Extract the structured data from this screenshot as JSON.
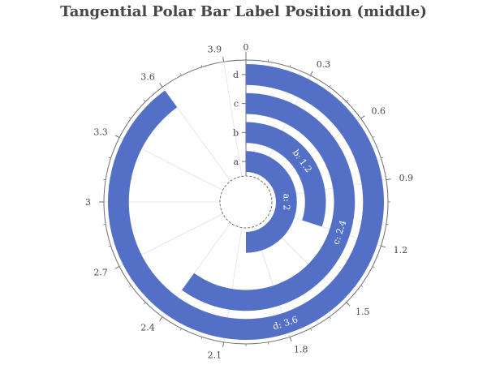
{
  "chart_data": {
    "type": "bar",
    "title": "Tangential Polar Bar Label Position (middle)",
    "coordinate_system": "polar",
    "orientation": "tangential",
    "label_position": "middle",
    "categories": [
      "a",
      "b",
      "c",
      "d"
    ],
    "values": [
      2,
      1.2,
      2.4,
      3.6
    ],
    "data_labels": [
      "a: 2",
      "b: 1.2",
      "c: 2.4",
      "d: 3.6"
    ],
    "angle_axis": {
      "min": 0,
      "max": 4,
      "clockwise": true,
      "start": "top",
      "tick_labels": [
        "0",
        "0.3",
        "0.6",
        "0.9",
        "1.2",
        "1.5",
        "1.8",
        "2.1",
        "2.4",
        "2.7",
        "3",
        "3.3",
        "3.6",
        "3.9"
      ]
    },
    "colors": {
      "bar": "#5470c6",
      "axis": "#6e7079",
      "split_line": "#e0e6f1",
      "text": "#464646",
      "title": "#464646"
    }
  }
}
